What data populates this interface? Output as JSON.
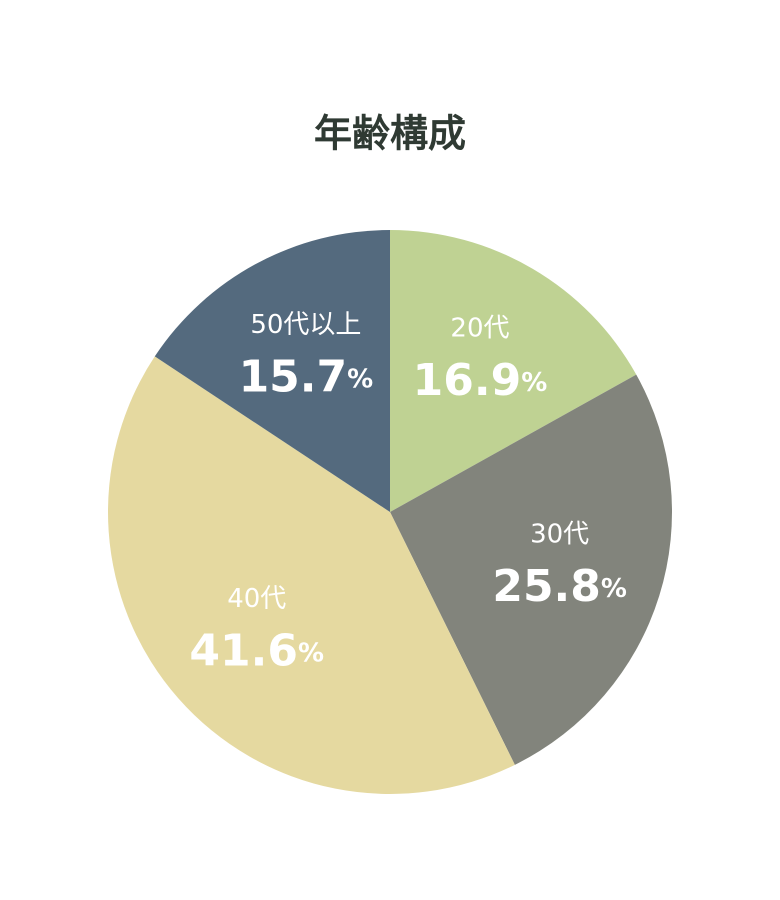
{
  "chart_data": {
    "type": "pie",
    "title": "年齢構成",
    "categories": [
      "20代",
      "30代",
      "40代",
      "50代以上"
    ],
    "values": [
      16.9,
      25.8,
      41.6,
      15.7
    ],
    "value_labels": [
      "16.9%",
      "25.8%",
      "41.6%",
      "15.7%"
    ],
    "colors": [
      "#bfd293",
      "#82847c",
      "#e5d9a0",
      "#546a7e"
    ]
  }
}
